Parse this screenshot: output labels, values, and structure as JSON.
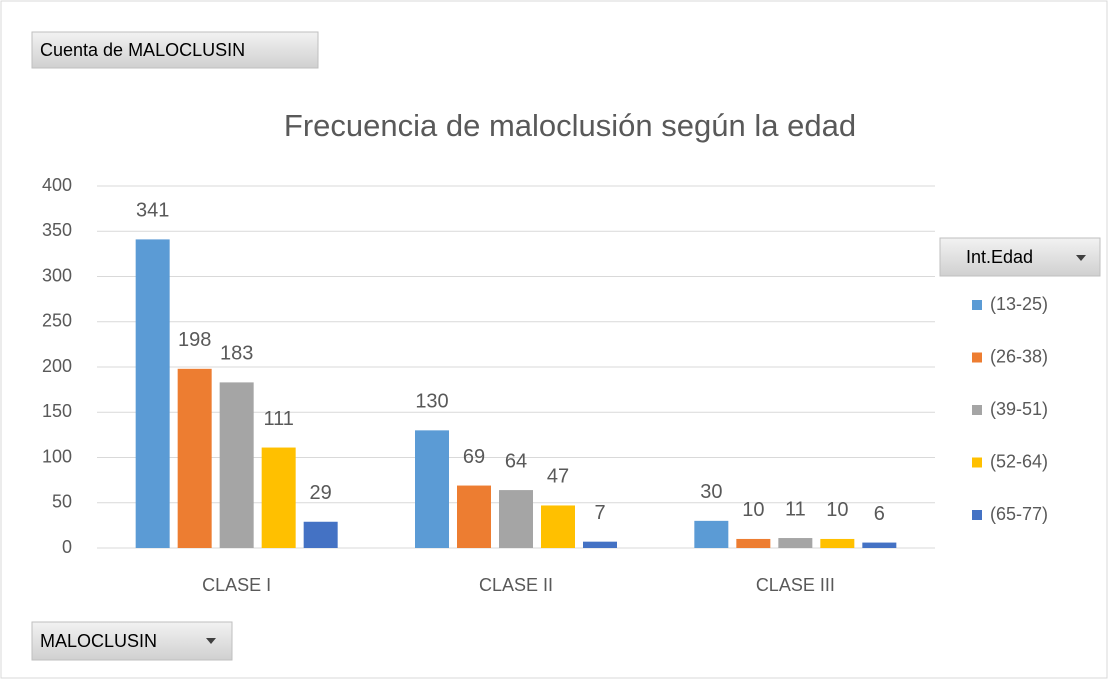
{
  "chart_data": {
    "type": "bar",
    "title": "Frecuencia de maloclusión según la edad",
    "value_field": "Cuenta de MALOCLUSIN",
    "axis_field": "MALOCLUSIN",
    "legend_title": "Int.Edad",
    "categories": [
      "CLASE I",
      "CLASE II",
      "CLASE III"
    ],
    "series": [
      {
        "name": "(13-25)",
        "color": "#5b9bd5",
        "values": [
          341,
          130,
          30
        ]
      },
      {
        "name": "(26-38)",
        "color": "#ed7d31",
        "values": [
          198,
          69,
          10
        ]
      },
      {
        "name": "(39-51)",
        "color": "#a5a5a5",
        "values": [
          183,
          64,
          11
        ]
      },
      {
        "name": "(52-64)",
        "color": "#ffc000",
        "values": [
          111,
          47,
          10
        ]
      },
      {
        "name": "(65-77)",
        "color": "#4472c4",
        "values": [
          29,
          7,
          6
        ]
      }
    ],
    "ylim": [
      0,
      400
    ],
    "yticks": [
      0,
      50,
      100,
      150,
      200,
      250,
      300,
      350,
      400
    ],
    "grid": true,
    "legend": "right"
  }
}
